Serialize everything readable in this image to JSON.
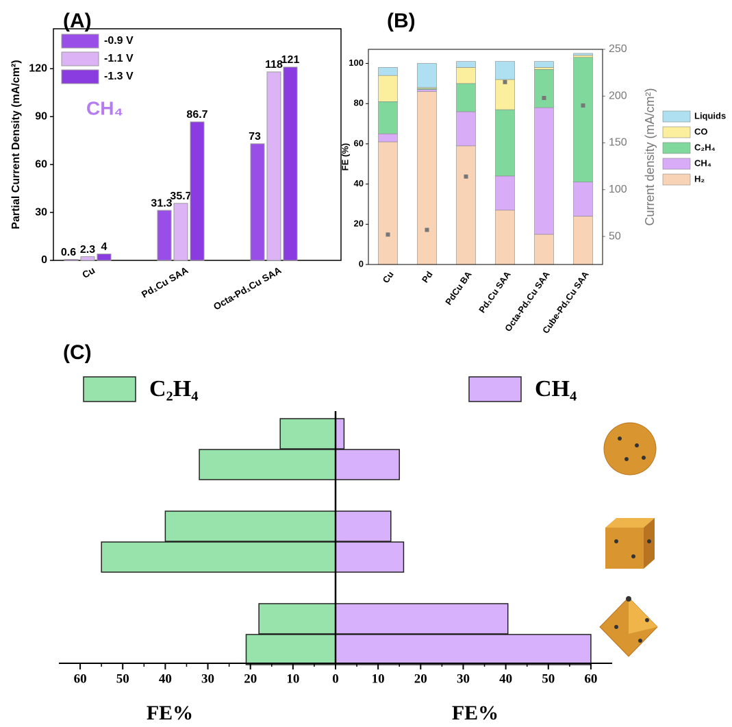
{
  "chart_data": [
    {
      "type": "grouped_bar",
      "title": "(A)",
      "ylabel": "Partial Current Density (mA/cm²)",
      "annotation": "CH₄",
      "categories": [
        "Cu",
        "Pd₁Cu SAA",
        "Octa-Pd₁Cu SAA"
      ],
      "series": [
        {
          "name": "-0.9 V",
          "color": "#9a4ee8",
          "values": [
            0.6,
            31.3,
            73
          ]
        },
        {
          "name": "-1.1 V",
          "color": "#dcb4f6",
          "values": [
            2.3,
            35.7,
            118
          ]
        },
        {
          "name": "-1.3 V",
          "color": "#8a3ce0",
          "values": [
            4,
            86.7,
            121
          ]
        }
      ],
      "ylim": [
        0,
        145
      ],
      "yticks": [
        0,
        30,
        60,
        90,
        120
      ],
      "legend": "upper left"
    },
    {
      "type": "stacked_bar",
      "title": "(B)",
      "ylabel": "FE (%)",
      "y2label": "Current density (mA/cm²)",
      "categories": [
        "Cu",
        "Pd",
        "PdCu  BA",
        "Pd₁Cu SAA",
        "Octa-Pd₁Cu SAA",
        "Cube-Pd₁Cu SAA"
      ],
      "series": [
        {
          "name": "H₂",
          "color": "#f9d3b6",
          "values": [
            61,
            86,
            59,
            27,
            15,
            24
          ]
        },
        {
          "name": "CH₄",
          "color": "#d9acf7",
          "values": [
            4,
            1,
            17,
            17,
            63,
            17
          ]
        },
        {
          "name": "C₂H₄",
          "color": "#80d89d",
          "values": [
            16,
            0.5,
            14,
            33,
            19,
            62
          ]
        },
        {
          "name": "CO",
          "color": "#fbee9c",
          "values": [
            13,
            0.5,
            8,
            15,
            1,
            1
          ]
        },
        {
          "name": "Liquids",
          "color": "#aee0f1",
          "values": [
            4,
            12,
            3,
            9,
            3,
            1
          ]
        },
        {
          "type": "scatter",
          "axis": "y2",
          "color": "#777777",
          "values": [
            52,
            57,
            114,
            215,
            198,
            190
          ]
        }
      ],
      "ylim": [
        0,
        107
      ],
      "yticks": [
        0,
        20,
        40,
        60,
        80,
        100
      ],
      "y2lim": [
        20,
        250
      ],
      "y2ticks": [
        50,
        100,
        150,
        200,
        250
      ],
      "legend": "right"
    },
    {
      "type": "butterfly_bar",
      "title": "(C)",
      "xlabels": [
        "FE%",
        "FE%"
      ],
      "categories": [
        null,
        null,
        null,
        null,
        null,
        null
      ],
      "series": [
        {
          "name": "C₂H₄",
          "color": "#98e3ac",
          "side": "left",
          "values": [
            13,
            32,
            40,
            55,
            18,
            21
          ]
        },
        {
          "name": "CH₄",
          "color": "#d7b1fb",
          "side": "right",
          "values": [
            2,
            15,
            13,
            16,
            40.5,
            60
          ]
        }
      ],
      "xlim": [
        -65,
        65
      ],
      "xticks": [
        {
          "value": -60,
          "label": "60"
        },
        {
          "value": -50,
          "label": "50"
        },
        {
          "value": -40,
          "label": "40"
        },
        {
          "value": -30,
          "label": "30"
        },
        {
          "value": -20,
          "label": "20"
        },
        {
          "value": -10,
          "label": "10"
        },
        0,
        10,
        20,
        30,
        40,
        50,
        60
      ],
      "legend": "top"
    }
  ]
}
